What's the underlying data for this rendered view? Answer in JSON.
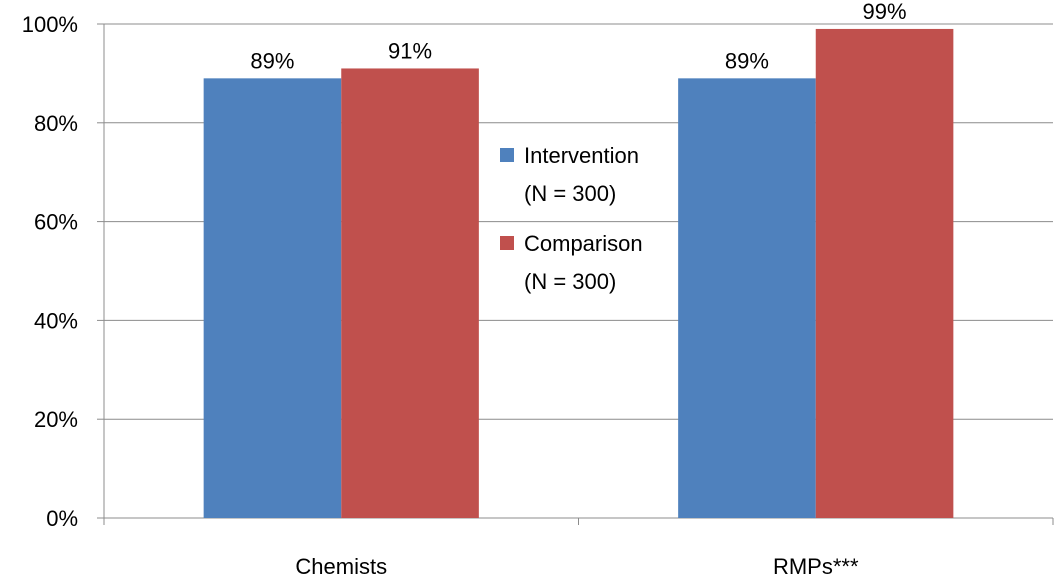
{
  "chart_data": {
    "type": "bar",
    "categories": [
      "Chemists",
      "RMPs***"
    ],
    "series": [
      {
        "name": "Intervention (N = 300)",
        "legend_lines": [
          "Intervention",
          "(N = 300)"
        ],
        "values": [
          89,
          89
        ],
        "labels": [
          "89%",
          "89%"
        ],
        "color": "#4F81BD"
      },
      {
        "name": "Comparison (N = 300)",
        "legend_lines": [
          "Comparison",
          "(N = 300)"
        ],
        "values": [
          91,
          99
        ],
        "labels": [
          "91%",
          "99%"
        ],
        "color": "#C0504D"
      }
    ],
    "yticks": [
      0,
      20,
      40,
      60,
      80,
      100
    ],
    "ytick_labels": [
      "0%",
      "20%",
      "40%",
      "60%",
      "80%",
      "100%"
    ],
    "ylim": [
      0,
      100
    ],
    "grid": true,
    "legend_position": "center"
  }
}
